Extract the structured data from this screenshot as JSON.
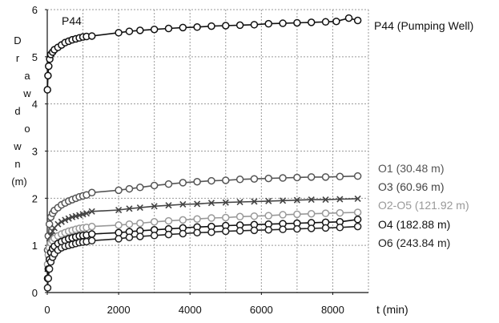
{
  "chart_data": {
    "type": "scatter",
    "xlabel": "t (min)",
    "ylabel": "Drawdown (m)",
    "xlim": [
      0,
      9000
    ],
    "ylim": [
      0,
      6
    ],
    "xticks": [
      "0",
      "2000",
      "4000",
      "6000",
      "8000"
    ],
    "yticks": [
      "0",
      "1",
      "2",
      "3",
      "4",
      "5",
      "6"
    ],
    "grid": true,
    "inline_title": "P44",
    "series": [
      {
        "name": "P44 (Pumping Well)",
        "color": "#111111",
        "marker": "circle",
        "x": [
          5,
          20,
          40,
          70,
          100,
          150,
          200,
          300,
          400,
          500,
          600,
          700,
          800,
          900,
          1000,
          1100,
          1250,
          2000,
          2300,
          2600,
          3000,
          3400,
          3800,
          4200,
          4600,
          5000,
          5400,
          5800,
          6200,
          6600,
          7000,
          7400,
          7800,
          8100,
          8450,
          8700
        ],
        "y": [
          4.3,
          4.6,
          4.8,
          4.95,
          5.05,
          5.1,
          5.15,
          5.2,
          5.25,
          5.3,
          5.33,
          5.36,
          5.38,
          5.4,
          5.42,
          5.43,
          5.44,
          5.51,
          5.54,
          5.56,
          5.58,
          5.6,
          5.62,
          5.63,
          5.65,
          5.66,
          5.67,
          5.68,
          5.7,
          5.71,
          5.72,
          5.73,
          5.74,
          5.75,
          5.82,
          5.77
        ]
      },
      {
        "name": "O1 (30.48 m)",
        "color": "#555555",
        "marker": "circle",
        "x": [
          10,
          30,
          60,
          100,
          150,
          200,
          300,
          400,
          500,
          600,
          700,
          800,
          900,
          1000,
          1100,
          1250,
          2000,
          2300,
          2600,
          3000,
          3400,
          3800,
          4200,
          4600,
          5000,
          5400,
          5800,
          6200,
          6600,
          7000,
          7400,
          7800,
          8200,
          8700
        ],
        "y": [
          0.9,
          1.2,
          1.45,
          1.6,
          1.68,
          1.74,
          1.8,
          1.86,
          1.9,
          1.94,
          1.97,
          2.0,
          2.03,
          2.05,
          2.07,
          2.12,
          2.17,
          2.2,
          2.23,
          2.27,
          2.3,
          2.33,
          2.35,
          2.37,
          2.38,
          2.4,
          2.41,
          2.42,
          2.43,
          2.44,
          2.45,
          2.45,
          2.46,
          2.47
        ]
      },
      {
        "name": "O3 (60.96 m)",
        "color": "#444444",
        "marker": "x",
        "x": [
          10,
          30,
          60,
          100,
          150,
          200,
          300,
          400,
          500,
          600,
          700,
          800,
          900,
          1000,
          1100,
          1250,
          2000,
          2300,
          2600,
          3000,
          3400,
          3800,
          4200,
          4600,
          5000,
          5400,
          5800,
          6200,
          6600,
          7000,
          7400,
          7800,
          8200,
          8700
        ],
        "y": [
          0.5,
          0.8,
          1.05,
          1.2,
          1.3,
          1.37,
          1.45,
          1.5,
          1.54,
          1.57,
          1.6,
          1.62,
          1.64,
          1.66,
          1.68,
          1.72,
          1.75,
          1.78,
          1.8,
          1.83,
          1.85,
          1.87,
          1.88,
          1.9,
          1.91,
          1.92,
          1.93,
          1.94,
          1.95,
          1.96,
          1.97,
          1.97,
          1.98,
          1.99
        ]
      },
      {
        "name": "O2-O5 (121.92 m)",
        "color": "#999999",
        "marker": "circle",
        "x": [
          10,
          30,
          60,
          100,
          150,
          200,
          300,
          400,
          500,
          600,
          700,
          800,
          900,
          1000,
          1100,
          1250,
          2000,
          2300,
          2600,
          3000,
          3400,
          3800,
          4200,
          4600,
          5000,
          5400,
          5800,
          6200,
          6600,
          7000,
          7400,
          7800,
          8200,
          8700
        ],
        "y": [
          0.6,
          0.8,
          0.95,
          1.05,
          1.1,
          1.15,
          1.2,
          1.24,
          1.27,
          1.3,
          1.32,
          1.34,
          1.36,
          1.37,
          1.38,
          1.4,
          1.43,
          1.45,
          1.47,
          1.5,
          1.52,
          1.54,
          1.56,
          1.58,
          1.59,
          1.61,
          1.62,
          1.63,
          1.65,
          1.66,
          1.67,
          1.68,
          1.69,
          1.7
        ]
      },
      {
        "name": "O4 (182.88 m)",
        "color": "#111111",
        "marker": "circle",
        "x": [
          10,
          30,
          60,
          100,
          150,
          200,
          300,
          400,
          500,
          600,
          700,
          800,
          900,
          1000,
          1100,
          1250,
          2000,
          2300,
          2600,
          3000,
          3400,
          3800,
          4200,
          4600,
          5000,
          5400,
          5800,
          6200,
          6600,
          7000,
          7400,
          7800,
          8200,
          8700
        ],
        "y": [
          0.3,
          0.5,
          0.7,
          0.85,
          0.93,
          0.98,
          1.04,
          1.08,
          1.11,
          1.14,
          1.16,
          1.18,
          1.2,
          1.21,
          1.22,
          1.24,
          1.27,
          1.29,
          1.31,
          1.33,
          1.35,
          1.37,
          1.39,
          1.4,
          1.42,
          1.43,
          1.44,
          1.45,
          1.46,
          1.47,
          1.48,
          1.49,
          1.5,
          1.55
        ]
      },
      {
        "name": "O6 (243.84 m)",
        "color": "#222222",
        "marker": "circle",
        "x": [
          10,
          30,
          60,
          100,
          150,
          200,
          300,
          400,
          500,
          600,
          700,
          800,
          900,
          1000,
          1100,
          1250,
          2000,
          2300,
          2600,
          3000,
          3400,
          3800,
          4200,
          4600,
          5000,
          5400,
          5800,
          6200,
          6600,
          7000,
          7400,
          7800,
          8200,
          8700
        ],
        "y": [
          0.1,
          0.3,
          0.5,
          0.65,
          0.75,
          0.82,
          0.9,
          0.95,
          0.98,
          1.0,
          1.02,
          1.04,
          1.06,
          1.07,
          1.08,
          1.1,
          1.14,
          1.17,
          1.19,
          1.21,
          1.23,
          1.25,
          1.27,
          1.28,
          1.3,
          1.31,
          1.32,
          1.33,
          1.34,
          1.35,
          1.36,
          1.37,
          1.38,
          1.4
        ]
      }
    ]
  }
}
